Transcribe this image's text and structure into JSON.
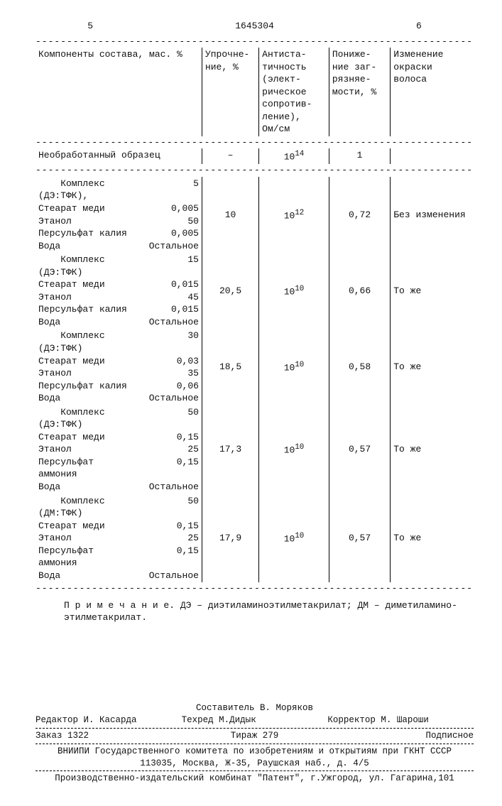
{
  "pagenum_left": "5",
  "patent_no": "1645304",
  "pagenum_right": "6",
  "dash": "-----------------------------------------------------------------------------",
  "header": {
    "col1": "Компоненты состава, мас. %",
    "col2": "Упрочне-\nние, %",
    "col3": "Антиста-\nтичность\n(элект-\nрическое\nсопротив-\nление),\nОм/см",
    "col4": "Пониже-\nние заг-\nрязняе-\nмости, %",
    "col5": "Изменение\nокраски\nволоса"
  },
  "untreated": {
    "label": "Необработанный образец",
    "c2": "–",
    "c3": "10",
    "c3exp": "14",
    "c4": "1",
    "c5": ""
  },
  "rows": [
    {
      "comp": [
        [
          "Комплекс (ДЭ:ТФК),",
          "5"
        ],
        [
          "Стеарат меди",
          "0,005"
        ],
        [
          "Этанол",
          "50"
        ],
        [
          "Персульфат калия",
          "0,005"
        ],
        [
          "Вода",
          "Остальное"
        ]
      ],
      "c2": "10",
      "c3": "10",
      "c3exp": "12",
      "c4": "0,72",
      "c5": "Без изменения"
    },
    {
      "comp": [
        [
          "Комплекс (ДЭ:ТФК)",
          "15"
        ],
        [
          "Стеарат меди",
          "0,015"
        ],
        [
          "Этанол",
          "45"
        ],
        [
          "Персульфат калия",
          "0,015"
        ],
        [
          "Вода",
          "Остальное"
        ]
      ],
      "c2": "20,5",
      "c3": "10",
      "c3exp": "10",
      "c4": "0,66",
      "c5": "То же"
    },
    {
      "comp": [
        [
          "Комплекс (ДЭ:ТФК)",
          "30"
        ],
        [
          "Стеарат меди",
          "0,03"
        ],
        [
          "Этанол",
          "35"
        ],
        [
          "Персульфат калия",
          "0,06"
        ],
        [
          "Вода",
          "Остальное"
        ]
      ],
      "c2": "18,5",
      "c3": "10",
      "c3exp": "10",
      "c4": "0,58",
      "c5": "То же"
    },
    {
      "comp": [
        [
          "Комплекс (ДЭ:ТФК)",
          "50"
        ],
        [
          "Стеарат меди",
          "0,15"
        ],
        [
          "Этанол",
          "25"
        ],
        [
          "Персульфат аммония",
          "0,15"
        ],
        [
          "Вода",
          "Остальное"
        ]
      ],
      "c2": "17,3",
      "c3": "10",
      "c3exp": "10",
      "c4": "0,57",
      "c5": "То же"
    },
    {
      "comp": [
        [
          "Комплекс (ДМ:ТФК)",
          "50"
        ],
        [
          "Стеарат меди",
          "0,15"
        ],
        [
          "Этанол",
          "25"
        ],
        [
          "Персульфат аммония",
          "0,15"
        ],
        [
          "Вода",
          "Остальное"
        ]
      ],
      "c2": "17,9",
      "c3": "10",
      "c3exp": "10",
      "c4": "0,57",
      "c5": "То же"
    }
  ],
  "note": "П р и м е ч а н и е. ДЭ – диэтиламиноэтилметакрилат; ДМ – диметиламино-\nэтилметакрилат.",
  "footer": {
    "compiler": "Составитель В. Моряков",
    "editor": "Редактор И. Касарда",
    "tech": "Техред М.Дидык",
    "corrector": "Корректор М. Шароши",
    "order": "Заказ 1322",
    "tirazh": "Тираж 279",
    "podpis": "Подписное",
    "vniipi": "ВНИИПИ Государственного комитета по изобретениям и открытиям при ГКНТ СССР",
    "addr1": "113035, Москва, Ж-35, Раушская наб., д. 4/5",
    "addr2": "Производственно-издательский комбинат \"Патент\", г.Ужгород, ул. Гагарина,101"
  }
}
